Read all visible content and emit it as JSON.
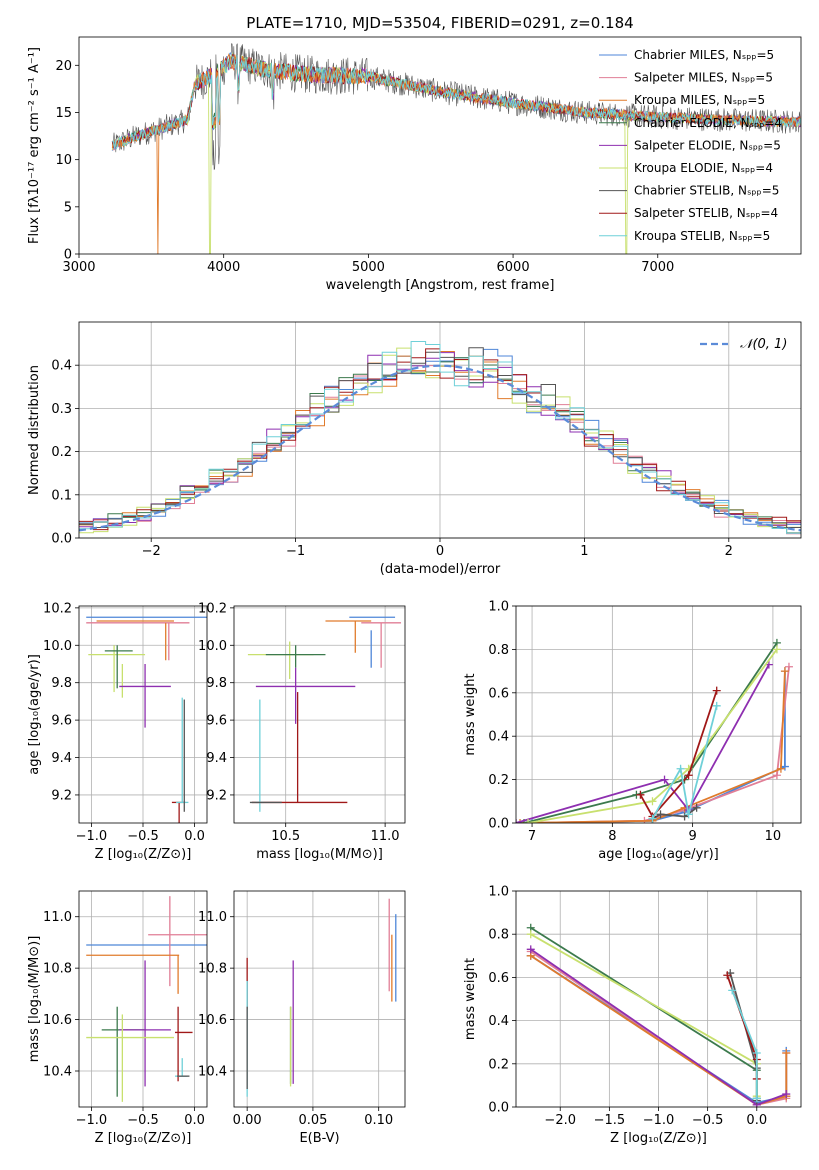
{
  "title": "PLATE=1710, MJD=53504, FIBERID=0291, z=0.184",
  "colors": {
    "c1": "#4e86d8",
    "c2": "#e17e96",
    "c3": "#e07b2c",
    "c4": "#3c7a4d",
    "c5": "#8e2fb0",
    "c6": "#c8e06e",
    "c7": "#555555",
    "c8": "#a01818",
    "c9": "#6fd0d8"
  },
  "chart_data": [
    {
      "id": "spectrum",
      "type": "line",
      "xlabel": "wavelength [Angstrom, rest frame]",
      "ylabel": "Flux [fλ10⁻¹⁷ erg cm⁻² s⁻¹ A⁻¹]",
      "xlim": [
        3000,
        7990
      ],
      "ylim": [
        0,
        23
      ],
      "xticks": [
        3000,
        4000,
        5000,
        6000,
        7000
      ],
      "yticks": [
        0,
        5,
        10,
        15,
        20
      ],
      "legend": [
        "Chabrier MILES, Nₛₚₚ=5",
        "Salpeter MILES, Nₛₚₚ=5",
        "Kroupa MILES, Nₛₚₚ=5",
        "Chabrier ELODIE, Nₛₚₚ=4",
        "Salpeter ELODIE, Nₛₚₚ=5",
        "Kroupa ELODIE, Nₛₚₚ=4",
        "Chabrier STELIB, Nₛₚₚ=5",
        "Salpeter STELIB, Nₛₚₚ=4",
        "Kroupa STELIB, Nₛₚₚ=5"
      ],
      "legend_placement": "upper-right",
      "continuum": {
        "x": [
          3230,
          3400,
          3600,
          3750,
          3800,
          3950,
          4050,
          4300,
          4600,
          5000,
          5500,
          6000,
          6500,
          7000,
          7500,
          7990
        ],
        "y": [
          11.5,
          12.5,
          13.5,
          14.2,
          18.0,
          19.2,
          20.5,
          19.5,
          19.0,
          18.8,
          17.2,
          16.0,
          15.0,
          14.5,
          14.2,
          14.0
        ]
      },
      "cutoffs": [
        {
          "x": 3545,
          "series": 3
        },
        {
          "x": 3905,
          "series": 6
        },
        {
          "x": 6780,
          "series": 6
        }
      ]
    },
    {
      "id": "residuals",
      "type": "histogram",
      "xlabel": "(data-model)/error",
      "ylabel": "Normed distribution",
      "xlim": [
        -2.5,
        2.5
      ],
      "ylim": [
        0,
        0.5
      ],
      "xticks": [
        -2,
        -1,
        0,
        1,
        2
      ],
      "yticks": [
        0.0,
        0.1,
        0.2,
        0.3,
        0.4
      ],
      "bin_width": 0.1,
      "legend": [
        "𝒩(0, 1)"
      ],
      "legend_placement": "upper-right",
      "reference_curve": "normal(0,1)"
    },
    {
      "id": "age-vs-Z",
      "type": "errorbar",
      "xlabel": "Z [log₁₀(Z/Z⊙)]",
      "ylabel": "age  [log₁₀(age/yr)]",
      "xlim": [
        -1.12,
        0.12
      ],
      "ylim": [
        9.05,
        10.21
      ],
      "xticks": [
        -1.0,
        -0.5,
        0.0
      ],
      "yticks": [
        9.2,
        9.4,
        9.6,
        9.8,
        10.0,
        10.2
      ],
      "points": [
        {
          "x": -0.45,
          "xerr": [
            0.6,
            0.6
          ],
          "y": 10.15,
          "yerr": [
            0,
            0
          ],
          "s": 1
        },
        {
          "x": -0.55,
          "xerr": [
            0.5,
            0.5
          ],
          "y": 10.12,
          "yerr": [
            0,
            0
          ],
          "s": 2
        },
        {
          "x": -0.5,
          "xerr": [
            0.45,
            0.3
          ],
          "y": 10.13,
          "yerr": [
            0,
            0
          ],
          "s": 3
        },
        {
          "x": -0.28,
          "xerr": [
            0,
            0
          ],
          "y": 10.12,
          "yerr": [
            0.2,
            0
          ],
          "s": 3
        },
        {
          "x": -0.25,
          "xerr": [
            0,
            0
          ],
          "y": 10.12,
          "yerr": [
            0.2,
            0
          ],
          "s": 2
        },
        {
          "x": -0.78,
          "xerr": [
            0.25,
            0.3
          ],
          "y": 9.95,
          "yerr": [
            0.2,
            0.05
          ],
          "s": 6
        },
        {
          "x": -0.75,
          "xerr": [
            0.12,
            0.15
          ],
          "y": 9.97,
          "yerr": [
            0.2,
            0.03
          ],
          "s": 4
        },
        {
          "x": -0.7,
          "xerr": [
            0,
            0
          ],
          "y": 9.8,
          "yerr": [
            0.08,
            0.1
          ],
          "s": 6
        },
        {
          "x": -0.48,
          "xerr": [
            0.25,
            0.25
          ],
          "y": 9.78,
          "yerr": [
            0.22,
            0.12
          ],
          "s": 5
        },
        {
          "x": -0.15,
          "xerr": [
            0.07,
            0.06
          ],
          "y": 9.16,
          "yerr": [
            0.58,
            0
          ],
          "s": 8
        },
        {
          "x": -0.12,
          "xerr": [
            0.06,
            0.06
          ],
          "y": 9.16,
          "yerr": [
            0,
            0.56
          ],
          "s": 9
        },
        {
          "x": -0.1,
          "xerr": [
            0,
            0
          ],
          "y": 9.16,
          "yerr": [
            0.05,
            0.55
          ],
          "s": 7
        }
      ]
    },
    {
      "id": "age-vs-mass",
      "type": "errorbar",
      "xlabel": "mass [log₁₀(M/M⊙)]",
      "ylabel": "",
      "xlim": [
        10.24,
        11.1
      ],
      "ylim": [
        9.05,
        10.21
      ],
      "xticks": [
        10.5,
        11.0
      ],
      "yticks": [
        9.2,
        9.4,
        9.6,
        9.8,
        10.0,
        10.2
      ],
      "points": [
        {
          "x": 10.95,
          "xerr": [
            0.13,
            0.1
          ],
          "y": 10.15,
          "yerr": [
            0,
            0
          ],
          "s": 1
        },
        {
          "x": 10.98,
          "xerr": [
            0.1,
            0.1
          ],
          "y": 10.12,
          "yerr": [
            0.24,
            0
          ],
          "s": 2
        },
        {
          "x": 10.85,
          "xerr": [
            0.15,
            0.08
          ],
          "y": 10.13,
          "yerr": [
            0.17,
            0
          ],
          "s": 3
        },
        {
          "x": 10.93,
          "xerr": [
            0,
            0
          ],
          "y": 10.03,
          "yerr": [
            0.15,
            0.05
          ],
          "s": 1
        },
        {
          "x": 10.52,
          "xerr": [
            0.21,
            0.12
          ],
          "y": 9.95,
          "yerr": [
            0.13,
            0.07
          ],
          "s": 6
        },
        {
          "x": 10.55,
          "xerr": [
            0.15,
            0.15
          ],
          "y": 9.95,
          "yerr": [
            0.07,
            0.05
          ],
          "s": 4
        },
        {
          "x": 10.55,
          "xerr": [
            0.2,
            0.3
          ],
          "y": 9.78,
          "yerr": [
            0.2,
            0.1
          ],
          "s": 5
        },
        {
          "x": 10.56,
          "xerr": [
            0.23,
            0.25
          ],
          "y": 9.16,
          "yerr": [
            0,
            0.59
          ],
          "s": 8
        },
        {
          "x": 10.37,
          "xerr": [
            0.02,
            0.02
          ],
          "y": 9.16,
          "yerr": [
            0.05,
            0.55
          ],
          "s": 9
        },
        {
          "x": 10.38,
          "xerr": [
            0.06,
            0.1
          ],
          "y": 9.16,
          "yerr": [
            0,
            0
          ],
          "s": 7
        }
      ]
    },
    {
      "id": "mass-weight-vs-age",
      "type": "line",
      "xlabel": "age  [log₁₀(age/yr)]",
      "ylabel": "mass weight",
      "xlim": [
        6.8,
        10.35
      ],
      "ylim": [
        0,
        1.0
      ],
      "xticks": [
        7,
        8,
        9,
        10
      ],
      "yticks": [
        0.0,
        0.2,
        0.4,
        0.6,
        0.8,
        1.0
      ],
      "series": [
        {
          "s": 1,
          "x": [
            7.0,
            8.5,
            8.9,
            10.15,
            10.15
          ],
          "y": [
            0.0,
            0.01,
            0.05,
            0.26,
            0.7
          ]
        },
        {
          "s": 2,
          "x": [
            6.9,
            8.4,
            8.9,
            10.05,
            10.2
          ],
          "y": [
            0.0,
            0.01,
            0.06,
            0.22,
            0.72
          ]
        },
        {
          "s": 3,
          "x": [
            6.85,
            8.5,
            8.9,
            10.1,
            10.15
          ],
          "y": [
            0.0,
            0.01,
            0.07,
            0.25,
            0.7
          ]
        },
        {
          "s": 4,
          "x": [
            6.9,
            8.3,
            8.9,
            10.05
          ],
          "y": [
            0.0,
            0.13,
            0.2,
            0.83
          ]
        },
        {
          "s": 5,
          "x": [
            6.8,
            8.65,
            8.95,
            9.95
          ],
          "y": [
            0.0,
            0.2,
            0.06,
            0.73
          ]
        },
        {
          "s": 6,
          "x": [
            6.95,
            8.5,
            8.95,
            10.05
          ],
          "y": [
            0.0,
            0.1,
            0.25,
            0.8
          ]
        },
        {
          "s": 7,
          "x": [
            8.5,
            8.6,
            8.9,
            9.05
          ],
          "y": [
            0.02,
            0.04,
            0.03,
            0.07
          ]
        },
        {
          "s": 8,
          "x": [
            8.35,
            8.5,
            8.95,
            9.3
          ],
          "y": [
            0.13,
            0.03,
            0.22,
            0.61
          ]
        },
        {
          "s": 9,
          "x": [
            8.5,
            8.85,
            8.95,
            9.3
          ],
          "y": [
            0.02,
            0.25,
            0.04,
            0.54
          ]
        }
      ]
    },
    {
      "id": "mass-vs-Z",
      "type": "errorbar",
      "xlabel": "Z [log₁₀(Z/Z⊙)]",
      "ylabel": "mass [log₁₀(M/M⊙)]",
      "xlim": [
        -1.12,
        0.12
      ],
      "ylim": [
        10.26,
        11.1
      ],
      "xticks": [
        -1.0,
        -0.5,
        0.0
      ],
      "yticks": [
        10.4,
        10.6,
        10.8,
        11.0
      ],
      "points": [
        {
          "x": -0.45,
          "xerr": [
            0.6,
            0.6
          ],
          "y": 10.89,
          "yerr": [
            0,
            0
          ],
          "s": 1
        },
        {
          "x": -0.35,
          "xerr": [
            0.1,
            0.48
          ],
          "y": 10.93,
          "yerr": [
            0,
            0
          ],
          "s": 2
        },
        {
          "x": -0.24,
          "xerr": [
            0,
            0
          ],
          "y": 10.93,
          "yerr": [
            0.2,
            0.15
          ],
          "s": 2
        },
        {
          "x": -0.55,
          "xerr": [
            0.5,
            0.4
          ],
          "y": 10.85,
          "yerr": [
            0,
            0
          ],
          "s": 3
        },
        {
          "x": -0.16,
          "xerr": [
            0,
            0
          ],
          "y": 10.85,
          "yerr": [
            0.15,
            0
          ],
          "s": 3
        },
        {
          "x": -0.75,
          "xerr": [
            0.15,
            0.28
          ],
          "y": 10.56,
          "yerr": [
            0.26,
            0.09
          ],
          "s": 4
        },
        {
          "x": -0.48,
          "xerr": [
            0.25,
            0.25
          ],
          "y": 10.56,
          "yerr": [
            0.22,
            0.27
          ],
          "s": 5
        },
        {
          "x": -0.7,
          "xerr": [
            0.35,
            0.5
          ],
          "y": 10.53,
          "yerr": [
            0.25,
            0.09
          ],
          "s": 6
        },
        {
          "x": -0.16,
          "xerr": [
            0,
            0
          ],
          "y": 10.56,
          "yerr": [
            0.2,
            0.09
          ],
          "s": 8
        },
        {
          "x": -0.12,
          "xerr": [
            0.07,
            0.1
          ],
          "y": 10.55,
          "yerr": [
            0,
            0
          ],
          "s": 8
        },
        {
          "x": -0.12,
          "xerr": [
            0.07,
            0.05
          ],
          "y": 10.38,
          "yerr": [
            0,
            0.07
          ],
          "s": 9
        },
        {
          "x": -0.1,
          "xerr": [
            0.07,
            0.05
          ],
          "y": 10.38,
          "yerr": [
            0,
            0
          ],
          "s": 7
        }
      ]
    },
    {
      "id": "mass-vs-ebv",
      "type": "errorbar",
      "xlabel": "E(B-V)",
      "ylabel": "",
      "xlim": [
        -0.01,
        0.12
      ],
      "ylim": [
        10.26,
        11.1
      ],
      "xticks": [
        0.0,
        0.05,
        0.1
      ],
      "yticks": [
        10.4,
        10.6,
        10.8,
        11.0
      ],
      "points": [
        {
          "x": 0.0,
          "xerr": [
            0,
            0
          ],
          "y": 10.73,
          "yerr": [
            0.09,
            0.11
          ],
          "s": 8
        },
        {
          "x": 0.0,
          "xerr": [
            0,
            0
          ],
          "y": 10.5,
          "yerr": [
            0.2,
            0.25
          ],
          "s": 9
        },
        {
          "x": 0.0,
          "xerr": [
            0,
            0
          ],
          "y": 10.55,
          "yerr": [
            0.22,
            0.1
          ],
          "s": 7
        },
        {
          "x": 0.033,
          "xerr": [
            0,
            0
          ],
          "y": 10.6,
          "yerr": [
            0.25,
            0.05
          ],
          "s": 4
        },
        {
          "x": 0.033,
          "xerr": [
            0,
            0
          ],
          "y": 10.52,
          "yerr": [
            0.18,
            0.13
          ],
          "s": 6
        },
        {
          "x": 0.035,
          "xerr": [
            0,
            0
          ],
          "y": 10.6,
          "yerr": [
            0.25,
            0.23
          ],
          "s": 5
        },
        {
          "x": 0.108,
          "xerr": [
            0,
            0
          ],
          "y": 10.9,
          "yerr": [
            0.19,
            0.17
          ],
          "s": 2
        },
        {
          "x": 0.11,
          "xerr": [
            0,
            0
          ],
          "y": 10.85,
          "yerr": [
            0.18,
            0.08
          ],
          "s": 3
        },
        {
          "x": 0.113,
          "xerr": [
            0,
            0
          ],
          "y": 10.89,
          "yerr": [
            0.22,
            0.12
          ],
          "s": 1
        }
      ]
    },
    {
      "id": "mass-weight-vs-Z",
      "type": "line",
      "xlabel": "Z [log₁₀(Z/Z⊙)]",
      "ylabel": "mass weight",
      "xlim": [
        -2.45,
        0.45
      ],
      "ylim": [
        0,
        1.0
      ],
      "xticks": [
        -2.0,
        -1.5,
        -1.0,
        -0.5,
        0.0
      ],
      "yticks": [
        0.0,
        0.2,
        0.4,
        0.6,
        0.8,
        1.0
      ],
      "series": [
        {
          "s": 1,
          "x": [
            -2.3,
            0.0,
            0.3,
            0.3
          ],
          "y": [
            0.7,
            0.02,
            0.05,
            0.26
          ]
        },
        {
          "s": 2,
          "x": [
            -2.3,
            0.0,
            0.3,
            0.3
          ],
          "y": [
            0.72,
            0.01,
            0.04,
            0.25
          ]
        },
        {
          "s": 3,
          "x": [
            -2.3,
            0.0,
            0.3,
            0.3
          ],
          "y": [
            0.7,
            0.01,
            0.05,
            0.25
          ]
        },
        {
          "s": 4,
          "x": [
            -2.3,
            0.0,
            0.0
          ],
          "y": [
            0.83,
            0.17,
            0.04
          ]
        },
        {
          "s": 5,
          "x": [
            -2.3,
            0.0,
            0.3
          ],
          "y": [
            0.73,
            0.01,
            0.06
          ]
        },
        {
          "s": 6,
          "x": [
            -2.3,
            0.0,
            0.0
          ],
          "y": [
            0.8,
            0.2,
            0.05
          ]
        },
        {
          "s": 7,
          "x": [
            -0.27,
            0.0,
            0.0
          ],
          "y": [
            0.62,
            0.18,
            0.03
          ]
        },
        {
          "s": 8,
          "x": [
            -0.3,
            0.0,
            0.0
          ],
          "y": [
            0.61,
            0.22,
            0.13
          ]
        },
        {
          "s": 9,
          "x": [
            -0.25,
            0.0,
            0.0
          ],
          "y": [
            0.54,
            0.25,
            0.04
          ]
        }
      ]
    }
  ]
}
